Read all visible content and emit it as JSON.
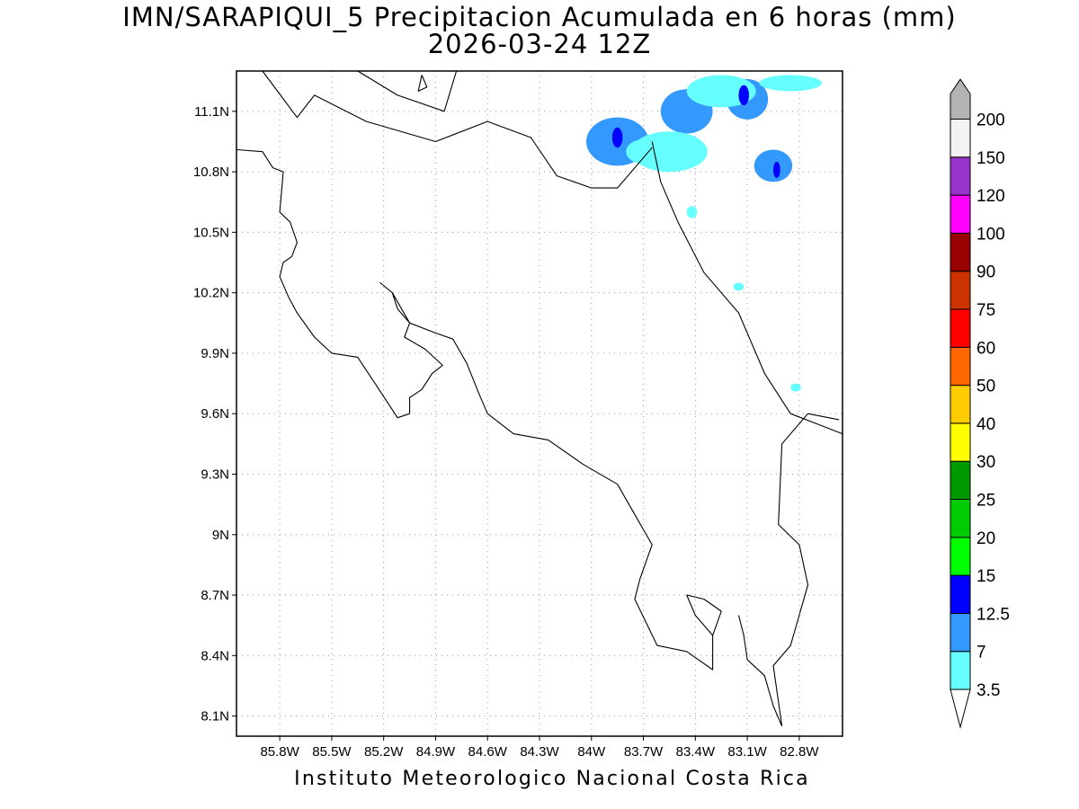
{
  "title": {
    "line1": "IMN/SARAPIQUI_5 Precipitacion Acumulada en 6 horas (mm)",
    "line2": "2026-03-24 12Z"
  },
  "footer": "Instituto Meteorologico Nacional Costa Rica",
  "map": {
    "lon_range": [
      -86.05,
      -82.55
    ],
    "lat_range": [
      8.0,
      11.3
    ],
    "x_ticks": [
      {
        "value": -85.8,
        "label": "85.8W"
      },
      {
        "value": -85.5,
        "label": "85.5W"
      },
      {
        "value": -85.2,
        "label": "85.2W"
      },
      {
        "value": -84.9,
        "label": "84.9W"
      },
      {
        "value": -84.6,
        "label": "84.6W"
      },
      {
        "value": -84.3,
        "label": "84.3W"
      },
      {
        "value": -84.0,
        "label": "84W"
      },
      {
        "value": -83.7,
        "label": "83.7W"
      },
      {
        "value": -83.4,
        "label": "83.4W"
      },
      {
        "value": -83.1,
        "label": "83.1W"
      },
      {
        "value": -82.8,
        "label": "82.8W"
      }
    ],
    "y_ticks": [
      {
        "value": 8.1,
        "label": "8.1N"
      },
      {
        "value": 8.4,
        "label": "8.4N"
      },
      {
        "value": 8.7,
        "label": "8.7N"
      },
      {
        "value": 9.0,
        "label": "9N"
      },
      {
        "value": 9.3,
        "label": "9.3N"
      },
      {
        "value": 9.6,
        "label": "9.6N"
      },
      {
        "value": 9.9,
        "label": "9.9N"
      },
      {
        "value": 10.2,
        "label": "10.2N"
      },
      {
        "value": 10.5,
        "label": "10.5N"
      },
      {
        "value": 10.8,
        "label": "10.8N"
      },
      {
        "value": 11.1,
        "label": "11.1N"
      }
    ],
    "grid": "dotted",
    "coastline": [
      [
        -86.05,
        10.91
      ],
      [
        -85.9,
        10.9
      ],
      [
        -85.84,
        10.82
      ],
      [
        -85.78,
        10.8
      ],
      [
        -85.79,
        10.7
      ],
      [
        -85.8,
        10.6
      ],
      [
        -85.74,
        10.55
      ],
      [
        -85.7,
        10.45
      ],
      [
        -85.73,
        10.38
      ],
      [
        -85.78,
        10.35
      ],
      [
        -85.8,
        10.28
      ],
      [
        -85.75,
        10.18
      ],
      [
        -85.7,
        10.1
      ],
      [
        -85.6,
        9.98
      ],
      [
        -85.5,
        9.9
      ],
      [
        -85.35,
        9.88
      ],
      [
        -85.25,
        9.75
      ],
      [
        -85.12,
        9.58
      ],
      [
        -85.05,
        9.6
      ],
      [
        -85.05,
        9.68
      ],
      [
        -84.98,
        9.72
      ],
      [
        -84.92,
        9.8
      ],
      [
        -84.86,
        9.84
      ],
      [
        -84.96,
        9.92
      ],
      [
        -85.08,
        9.98
      ],
      [
        -85.05,
        10.05
      ],
      [
        -85.12,
        10.12
      ],
      [
        -85.15,
        10.2
      ],
      [
        -85.22,
        10.25
      ],
      [
        -85.15,
        10.2
      ],
      [
        -85.05,
        10.05
      ],
      [
        -84.9,
        10.0
      ],
      [
        -84.8,
        9.97
      ],
      [
        -84.72,
        9.85
      ],
      [
        -84.65,
        9.7
      ],
      [
        -84.6,
        9.6
      ],
      [
        -84.45,
        9.5
      ],
      [
        -84.25,
        9.47
      ],
      [
        -84.05,
        9.35
      ],
      [
        -83.85,
        9.25
      ],
      [
        -83.75,
        9.1
      ],
      [
        -83.65,
        8.95
      ],
      [
        -83.72,
        8.78
      ],
      [
        -83.75,
        8.68
      ],
      [
        -83.62,
        8.45
      ],
      [
        -83.45,
        8.42
      ],
      [
        -83.3,
        8.33
      ],
      [
        -83.3,
        8.5
      ],
      [
        -83.25,
        8.62
      ],
      [
        -83.35,
        8.68
      ],
      [
        -83.45,
        8.7
      ],
      [
        -83.4,
        8.6
      ],
      [
        -83.3,
        8.5
      ]
    ],
    "coastline_pacific_south": [
      [
        -83.15,
        8.6
      ],
      [
        -83.12,
        8.5
      ],
      [
        -83.1,
        8.38
      ],
      [
        -83.0,
        8.3
      ],
      [
        -82.95,
        8.15
      ],
      [
        -82.9,
        8.05
      ]
    ],
    "coastline_caribbean": [
      [
        -83.65,
        10.95
      ],
      [
        -83.6,
        10.75
      ],
      [
        -83.5,
        10.55
      ],
      [
        -83.35,
        10.3
      ],
      [
        -83.15,
        10.1
      ],
      [
        -83.0,
        9.8
      ],
      [
        -82.85,
        9.6
      ],
      [
        -82.7,
        9.55
      ],
      [
        -82.55,
        9.5
      ]
    ],
    "border_nicaragua": [
      [
        -85.9,
        11.3
      ],
      [
        -85.7,
        11.07
      ],
      [
        -85.6,
        11.18
      ],
      [
        -85.3,
        11.05
      ],
      [
        -84.9,
        10.95
      ],
      [
        -84.6,
        11.05
      ],
      [
        -84.35,
        10.97
      ],
      [
        -84.2,
        10.78
      ],
      [
        -84.0,
        10.72
      ],
      [
        -83.85,
        10.72
      ],
      [
        -83.65,
        10.92
      ]
    ],
    "border_panama": [
      [
        -82.57,
        9.57
      ],
      [
        -82.75,
        9.6
      ],
      [
        -82.9,
        9.45
      ],
      [
        -82.92,
        9.05
      ],
      [
        -82.8,
        8.95
      ],
      [
        -82.75,
        8.75
      ],
      [
        -82.85,
        8.45
      ],
      [
        -82.95,
        8.35
      ],
      [
        -82.9,
        8.05
      ]
    ],
    "island": [
      [
        -84.98,
        11.28
      ],
      [
        -84.95,
        11.22
      ],
      [
        -85.0,
        11.2
      ],
      [
        -84.98,
        11.28
      ]
    ],
    "lake_nicaragua_edge": [
      [
        -85.35,
        11.3
      ],
      [
        -85.12,
        11.18
      ],
      [
        -84.85,
        11.1
      ],
      [
        -84.78,
        11.3
      ]
    ],
    "precip_blobs": [
      {
        "lon": -83.85,
        "lat": 10.95,
        "rx": 0.18,
        "ry": 0.12,
        "value": 7
      },
      {
        "lon": -83.7,
        "lat": 10.9,
        "rx": 0.1,
        "ry": 0.06,
        "value": 3.5
      },
      {
        "lon": -83.45,
        "lat": 11.1,
        "rx": 0.15,
        "ry": 0.11,
        "value": 7
      },
      {
        "lon": -83.1,
        "lat": 11.16,
        "rx": 0.12,
        "ry": 0.1,
        "value": 7
      },
      {
        "lon": -82.95,
        "lat": 10.83,
        "rx": 0.11,
        "ry": 0.08,
        "value": 7
      },
      {
        "lon": -83.55,
        "lat": 10.9,
        "rx": 0.22,
        "ry": 0.1,
        "value": 3.5
      },
      {
        "lon": -83.25,
        "lat": 11.2,
        "rx": 0.2,
        "ry": 0.08,
        "value": 3.5
      },
      {
        "lon": -82.85,
        "lat": 11.24,
        "rx": 0.18,
        "ry": 0.04,
        "value": 3.5
      },
      {
        "lon": -83.42,
        "lat": 10.6,
        "rx": 0.03,
        "ry": 0.03,
        "value": 3.5
      },
      {
        "lon": -83.15,
        "lat": 10.23,
        "rx": 0.03,
        "ry": 0.02,
        "value": 3.5
      },
      {
        "lon": -82.82,
        "lat": 9.73,
        "rx": 0.03,
        "ry": 0.02,
        "value": 3.5
      },
      {
        "lon": -83.85,
        "lat": 10.97,
        "rx": 0.03,
        "ry": 0.05,
        "value": 12.5
      },
      {
        "lon": -83.12,
        "lat": 11.18,
        "rx": 0.03,
        "ry": 0.05,
        "value": 12.5
      },
      {
        "lon": -82.93,
        "lat": 10.81,
        "rx": 0.02,
        "ry": 0.04,
        "value": 12.5
      }
    ]
  },
  "colorbar": {
    "levels": [
      "3.5",
      "7",
      "12.5",
      "15",
      "20",
      "25",
      "30",
      "40",
      "50",
      "60",
      "75",
      "90",
      "100",
      "120",
      "150",
      "200"
    ],
    "colors": [
      "#66ffff",
      "#3399ff",
      "#0000ff",
      "#00ff00",
      "#00cc00",
      "#009900",
      "#ffff00",
      "#ffcc00",
      "#ff6600",
      "#ff0000",
      "#cc3300",
      "#990000",
      "#ff00ff",
      "#9933cc",
      "#f2f2f2",
      "#b3b3b3"
    ]
  }
}
